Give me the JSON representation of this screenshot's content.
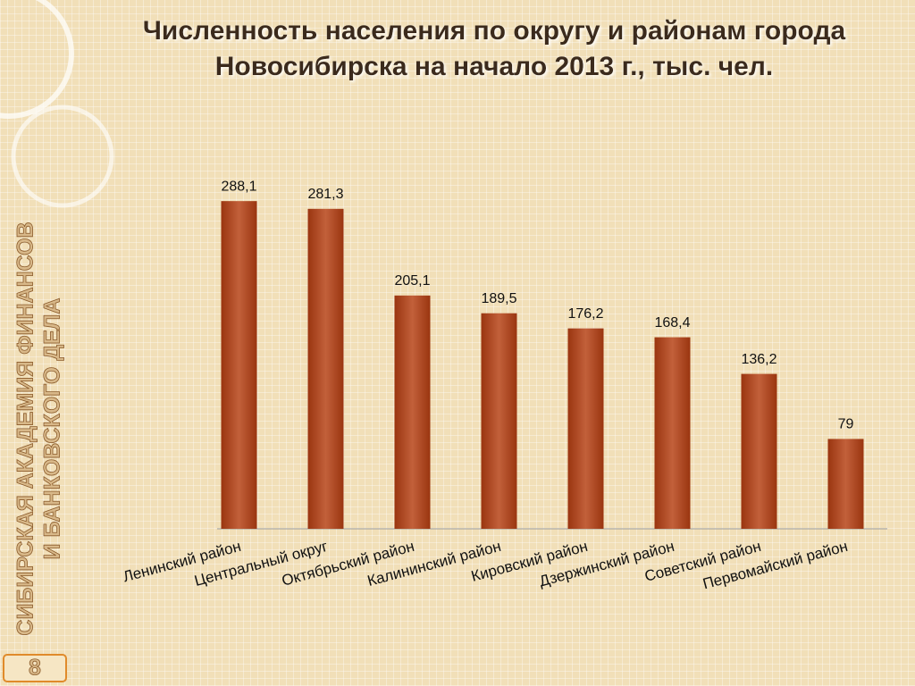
{
  "title_lines": [
    "Численность населения по округу и районам города",
    "Новосибирска на начало 2013 г., тыс. чел."
  ],
  "sidebar": [
    "СИБИРСКАЯ АКАДЕМИЯ ФИНАНСОВ",
    "И БАНКОВСКОГО ДЕЛА"
  ],
  "page_number": 8,
  "chart_data": {
    "type": "bar",
    "categories": [
      "Ленинский район",
      "Центральный округ",
      "Октябрьский район",
      "Калининский район",
      "Кировский район",
      "Дзержинский район",
      "Советский район",
      "Первомайский район"
    ],
    "values": [
      288.1,
      281.3,
      205.1,
      189.5,
      176.2,
      168.4,
      136.2,
      79
    ],
    "value_labels": [
      "288,1",
      "281,3",
      "205,1",
      "189,5",
      "176,2",
      "168,4",
      "136,2",
      "79"
    ],
    "color": "#9a3510",
    "ylim": [
      0,
      300
    ]
  }
}
